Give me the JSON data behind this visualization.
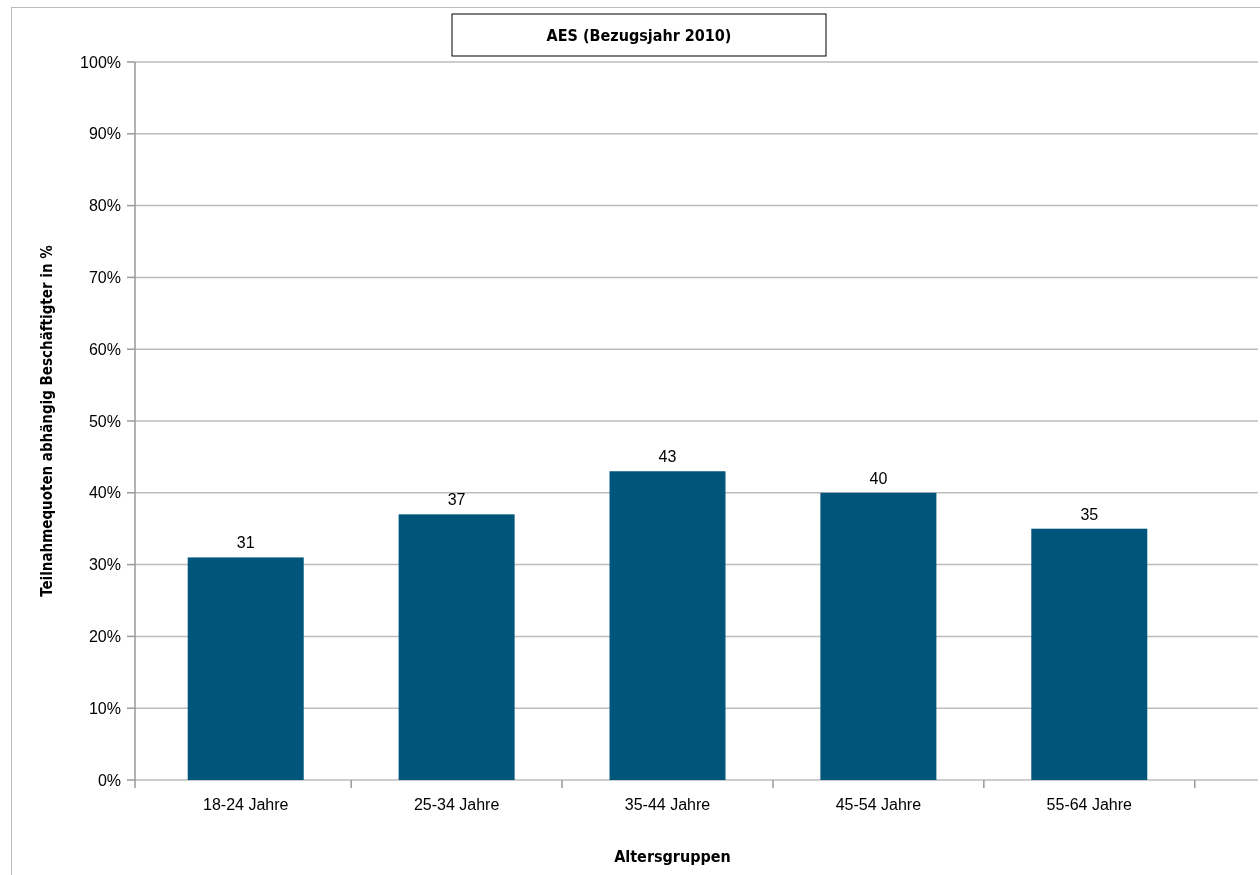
{
  "chart_data": {
    "type": "bar",
    "title": "AES (Bezugsjahr 2010)",
    "xlabel": "Altersgruppen",
    "ylabel": "Teilnahmequoten abhängig Beschäftigter in %",
    "categories": [
      "18-24 Jahre",
      "25-34 Jahre",
      "35-44 Jahre",
      "45-54 Jahre",
      "55-64 Jahre"
    ],
    "values": [
      31,
      37,
      43,
      40,
      35
    ],
    "color": "#00557a",
    "data_labels": true,
    "grid": "y",
    "ylim": [
      0,
      100
    ],
    "yticks": [
      {
        "value": 0,
        "label": "0%"
      },
      {
        "value": 10,
        "label": "10%"
      },
      {
        "value": 20,
        "label": "20%"
      },
      {
        "value": 30,
        "label": "30%"
      },
      {
        "value": 40,
        "label": "40%"
      },
      {
        "value": 50,
        "label": "50%"
      },
      {
        "value": 60,
        "label": "60%"
      },
      {
        "value": 70,
        "label": "70%"
      },
      {
        "value": 80,
        "label": "80%"
      },
      {
        "value": 90,
        "label": "90%"
      },
      {
        "value": 100,
        "label": "100%"
      }
    ]
  }
}
